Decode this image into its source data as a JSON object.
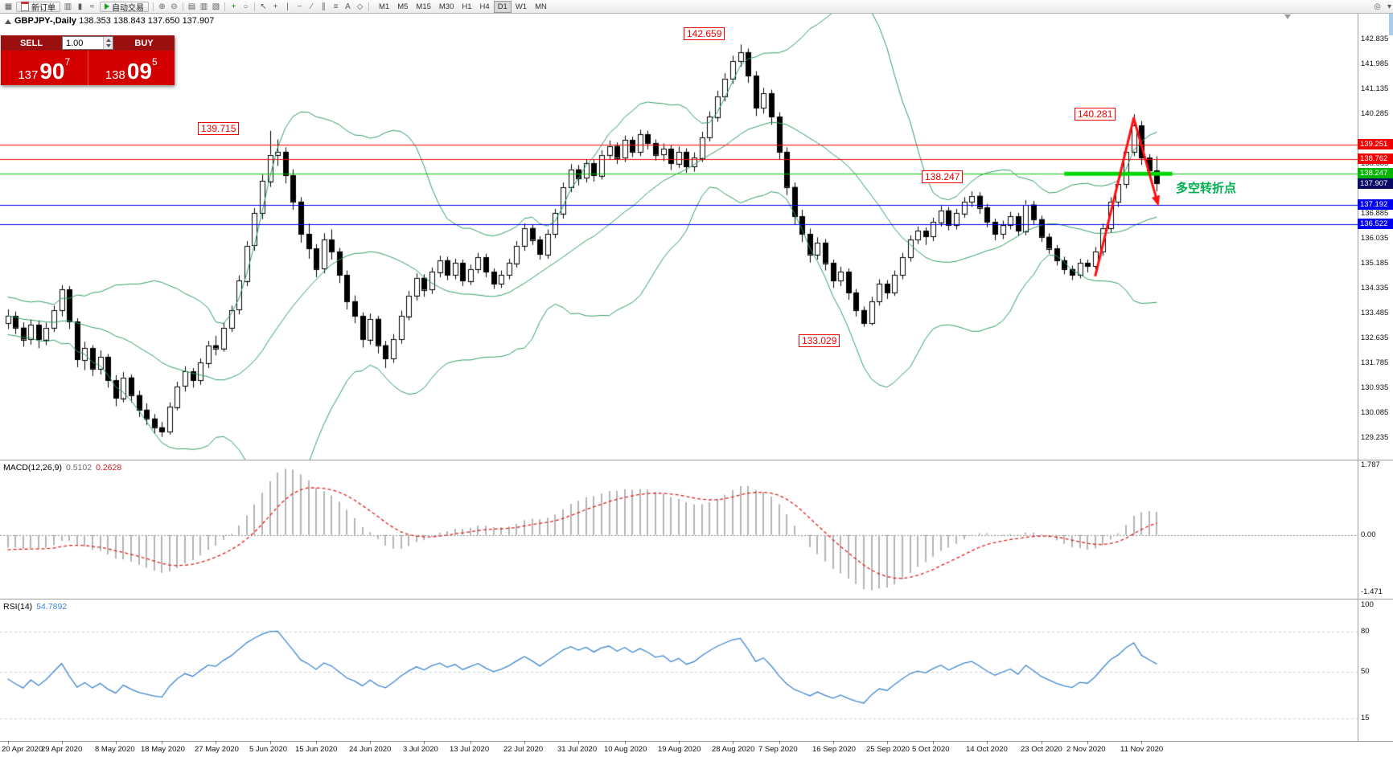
{
  "toolbar": {
    "new_order_label": "新订单",
    "auto_trading_label": "自动交易",
    "icons_left": [
      {
        "name": "charts-window-icon",
        "glyph": "▦"
      }
    ],
    "icons_mid": [
      {
        "name": "chart-bars-icon",
        "glyph": "▥"
      },
      {
        "name": "chart-candlesticks-icon",
        "glyph": "▮"
      },
      {
        "name": "chart-line-icon",
        "glyph": "≈"
      }
    ],
    "icons_tools": [
      {
        "sep": true
      },
      {
        "name": "zoom-in-icon",
        "glyph": "⊕"
      },
      {
        "name": "zoom-out-icon",
        "glyph": "⊖"
      },
      {
        "sep": true
      },
      {
        "name": "tile-windows-icon",
        "glyph": "▤"
      },
      {
        "name": "tile-vertical-icon",
        "glyph": "▥"
      },
      {
        "name": "cascade-windows-icon",
        "glyph": "▧"
      },
      {
        "sep": true
      },
      {
        "name": "indicators-icon",
        "glyph": "+",
        "color": "#0b8f0b"
      },
      {
        "name": "period-clock-icon",
        "glyph": "○"
      },
      {
        "sep": true
      },
      {
        "name": "pointer-tool-icon",
        "glyph": "↖"
      },
      {
        "name": "crosshair-tool-icon",
        "glyph": "+"
      },
      {
        "name": "vertical-line-tool-icon",
        "glyph": "|"
      },
      {
        "name": "horizontal-line-tool-icon",
        "glyph": "−"
      },
      {
        "name": "trendline-tool-icon",
        "glyph": "∕"
      },
      {
        "name": "channel-tool-icon",
        "glyph": "∥"
      },
      {
        "name": "fibonacci-tool-icon",
        "glyph": "≡"
      },
      {
        "name": "text-tool-icon",
        "glyph": "A"
      },
      {
        "name": "shapes-tool-icon",
        "glyph": "◇"
      },
      {
        "sep": true
      }
    ],
    "icons_right": [
      {
        "name": "search-icon",
        "glyph": "◎"
      },
      {
        "name": "more-dropdown-icon",
        "glyph": "▾"
      }
    ],
    "timeframes": [
      "M1",
      "M5",
      "M15",
      "M30",
      "H1",
      "H4",
      "D1",
      "W1",
      "MN"
    ],
    "active_timeframe": "D1"
  },
  "chart_header": {
    "symbol": "GBPJPY-,Daily",
    "ohlc": "138.353 138.843 137.650 137.907"
  },
  "order_panel": {
    "sell_label": "SELL",
    "buy_label": "BUY",
    "volume": "1.00",
    "sell": {
      "small": "137",
      "big": "90",
      "sup": "7"
    },
    "buy": {
      "small": "138",
      "big": "09",
      "sup": "5"
    }
  },
  "annotations": {
    "jun_high": "139.715",
    "sep_high": "142.659",
    "nov_high": "140.281",
    "pivot": "138.247",
    "sep_low": "133.029",
    "note": "多空转折点"
  },
  "indicators": {
    "macd": {
      "label": "MACD(12,26,9)",
      "value_main": "0.5102",
      "value_signal": "0.2628",
      "scale": [
        {
          "label": "1.787",
          "value": 1.787
        },
        {
          "label": "0.00",
          "value": 0
        },
        {
          "label": "-1.471",
          "value": -1.471
        }
      ]
    },
    "rsi": {
      "label": "RSI(14)",
      "value": "54.7892",
      "scale": [
        {
          "label": "100",
          "value": 100
        },
        {
          "label": "80",
          "value": 80
        },
        {
          "label": "50",
          "value": 50
        },
        {
          "label": "15",
          "value": 15
        }
      ],
      "levels": [
        80,
        50,
        15
      ]
    }
  },
  "price_scale": {
    "ticks": [
      {
        "label": "142.835",
        "price": 142.835
      },
      {
        "label": "141.985",
        "price": 141.985
      },
      {
        "label": "141.135",
        "price": 141.135
      },
      {
        "label": "140.285",
        "price": 140.285
      },
      {
        "label": "138.585",
        "price": 138.585
      },
      {
        "label": "136.885",
        "price": 136.885
      },
      {
        "label": "136.035",
        "price": 136.035
      },
      {
        "label": "135.185",
        "price": 135.185
      },
      {
        "label": "134.335",
        "price": 134.335
      },
      {
        "label": "133.485",
        "price": 133.485
      },
      {
        "label": "132.635",
        "price": 132.635
      },
      {
        "label": "131.785",
        "price": 131.785
      },
      {
        "label": "130.935",
        "price": 130.935
      },
      {
        "label": "130.085",
        "price": 130.085
      },
      {
        "label": "129.235",
        "price": 129.235
      }
    ],
    "highlights": [
      {
        "label": "139.251",
        "price": 139.251,
        "color": "#f00000"
      },
      {
        "label": "138.762",
        "price": 138.762,
        "color": "#f00000"
      },
      {
        "label": "138.247",
        "price": 138.247,
        "color": "#00b400"
      },
      {
        "label": "137.907",
        "price": 137.907,
        "color": "#0a0a64"
      },
      {
        "label": "137.192",
        "price": 137.192,
        "color": "#0000f0"
      },
      {
        "label": "136.522",
        "price": 136.522,
        "color": "#0000f0"
      }
    ]
  },
  "date_axis": [
    {
      "label": "20 Apr 2020",
      "i": 0
    },
    {
      "label": "29 Apr 2020",
      "i": 7
    },
    {
      "label": "8 May 2020",
      "i": 14
    },
    {
      "label": "18 May 2020",
      "i": 20
    },
    {
      "label": "27 May 2020",
      "i": 27
    },
    {
      "label": "5 Jun 2020",
      "i": 34
    },
    {
      "label": "15 Jun 2020",
      "i": 40
    },
    {
      "label": "24 Jun 2020",
      "i": 47
    },
    {
      "label": "3 Jul 2020",
      "i": 54
    },
    {
      "label": "13 Jul 2020",
      "i": 60
    },
    {
      "label": "22 Jul 2020",
      "i": 67
    },
    {
      "label": "31 Jul 2020",
      "i": 74
    },
    {
      "label": "10 Aug 2020",
      "i": 80
    },
    {
      "label": "19 Aug 2020",
      "i": 87
    },
    {
      "label": "28 Aug 2020",
      "i": 94
    },
    {
      "label": "7 Sep 2020",
      "i": 100
    },
    {
      "label": "16 Sep 2020",
      "i": 107
    },
    {
      "label": "25 Sep 2020",
      "i": 114
    },
    {
      "label": "5 Oct 2020",
      "i": 120
    },
    {
      "label": "14 Oct 2020",
      "i": 127
    },
    {
      "label": "23 Oct 2020",
      "i": 134
    },
    {
      "label": "2 Nov 2020",
      "i": 140
    },
    {
      "label": "11 Nov 2020",
      "i": 147
    }
  ],
  "chart_data": {
    "type": "candlestick",
    "title": "GBPJPY-,Daily",
    "ohlc_last": {
      "open": 138.353,
      "high": 138.843,
      "low": 137.65,
      "close": 137.907
    },
    "bollinger": {
      "period": 20,
      "deviations": 2
    },
    "macd": {
      "fast": 12,
      "slow": 26,
      "signal": 9
    },
    "rsi": {
      "period": 14
    },
    "lines": [
      {
        "price": 139.251,
        "color": "#f00000"
      },
      {
        "price": 138.762,
        "color": "#f00000"
      },
      {
        "price": 138.247,
        "color": "#00c000"
      },
      {
        "price": 137.192,
        "color": "#0000f0"
      },
      {
        "price": 136.522,
        "color": "#0000f0"
      }
    ],
    "green_zone": {
      "price": 138.247,
      "from": 137,
      "to": 151
    },
    "zigzag": [
      {
        "i": 141,
        "p": 134.75
      },
      {
        "i": 146,
        "p": 140.15
      },
      {
        "i": 149,
        "p": 137.35
      }
    ],
    "pre_closes": [
      135.4,
      135.1,
      134.8,
      135.0,
      134.6,
      134.2,
      134.5,
      134.0,
      133.7,
      133.9,
      133.5,
      133.8,
      134.1,
      133.6,
      133.3,
      133.6,
      133.9,
      133.4,
      133.1,
      133.4,
      133.7,
      133.2,
      132.9,
      133.2,
      133.5,
      133.0,
      133.3,
      133.6,
      133.1,
      132.9
    ],
    "candles": [
      [
        133.15,
        133.62,
        132.95,
        133.4
      ],
      [
        133.4,
        133.55,
        132.78,
        133.0
      ],
      [
        133.0,
        133.18,
        132.35,
        132.6
      ],
      [
        132.6,
        133.28,
        132.42,
        133.1
      ],
      [
        133.1,
        133.25,
        132.3,
        132.6
      ],
      [
        132.6,
        133.17,
        132.4,
        133.0
      ],
      [
        133.0,
        133.75,
        132.85,
        133.6
      ],
      [
        133.6,
        134.45,
        133.38,
        134.3
      ],
      [
        134.3,
        134.42,
        132.95,
        133.2
      ],
      [
        133.2,
        133.32,
        131.65,
        131.9
      ],
      [
        131.9,
        132.52,
        131.55,
        132.3
      ],
      [
        132.3,
        132.4,
        131.35,
        131.6
      ],
      [
        131.6,
        132.22,
        131.4,
        132.0
      ],
      [
        132.0,
        132.1,
        130.95,
        131.2
      ],
      [
        131.2,
        131.38,
        130.32,
        130.6
      ],
      [
        130.6,
        131.48,
        130.45,
        131.3
      ],
      [
        131.3,
        131.4,
        130.45,
        130.7
      ],
      [
        130.7,
        130.85,
        129.95,
        130.2
      ],
      [
        130.2,
        130.42,
        129.68,
        129.9
      ],
      [
        129.9,
        130.05,
        129.4,
        129.6
      ],
      [
        129.6,
        129.78,
        129.27,
        129.45
      ],
      [
        129.45,
        130.45,
        129.35,
        130.3
      ],
      [
        130.3,
        131.15,
        130.18,
        131.0
      ],
      [
        131.0,
        131.68,
        130.82,
        131.5
      ],
      [
        131.5,
        131.62,
        130.95,
        131.2
      ],
      [
        131.2,
        131.95,
        131.05,
        131.8
      ],
      [
        131.8,
        132.55,
        131.62,
        132.4
      ],
      [
        132.4,
        132.72,
        132.05,
        132.3
      ],
      [
        132.3,
        133.18,
        132.18,
        133.0
      ],
      [
        133.0,
        133.75,
        132.85,
        133.6
      ],
      [
        133.6,
        134.78,
        133.45,
        134.6
      ],
      [
        134.6,
        135.95,
        134.42,
        135.8
      ],
      [
        135.8,
        137.08,
        135.62,
        136.9
      ],
      [
        136.9,
        138.22,
        136.7,
        138.0
      ],
      [
        138.0,
        139.715,
        137.8,
        138.9
      ],
      [
        138.9,
        139.42,
        138.52,
        139.0
      ],
      [
        139.0,
        139.15,
        137.92,
        138.2
      ],
      [
        138.2,
        138.4,
        137.02,
        137.3
      ],
      [
        137.3,
        137.45,
        135.9,
        136.2
      ],
      [
        136.2,
        136.55,
        135.35,
        135.7
      ],
      [
        135.7,
        135.85,
        134.72,
        135.0
      ],
      [
        135.0,
        136.22,
        134.85,
        136.0
      ],
      [
        136.0,
        136.35,
        135.32,
        135.6
      ],
      [
        135.6,
        135.72,
        134.52,
        134.8
      ],
      [
        134.8,
        134.95,
        133.62,
        133.9
      ],
      [
        133.9,
        134.1,
        133.15,
        133.4
      ],
      [
        133.4,
        133.52,
        132.32,
        132.6
      ],
      [
        132.6,
        133.48,
        132.42,
        133.3
      ],
      [
        133.3,
        133.4,
        132.12,
        132.4
      ],
      [
        132.4,
        132.55,
        131.62,
        131.95
      ],
      [
        131.95,
        132.78,
        131.8,
        132.6
      ],
      [
        132.6,
        133.58,
        132.45,
        133.4
      ],
      [
        133.4,
        134.25,
        133.25,
        134.1
      ],
      [
        134.1,
        134.85,
        133.92,
        134.7
      ],
      [
        134.7,
        134.82,
        134.05,
        134.3
      ],
      [
        134.3,
        135.05,
        134.15,
        134.9
      ],
      [
        134.9,
        135.45,
        134.72,
        135.3
      ],
      [
        135.3,
        135.42,
        134.62,
        134.8
      ],
      [
        134.8,
        135.35,
        134.65,
        135.2
      ],
      [
        135.2,
        135.32,
        134.42,
        134.6
      ],
      [
        134.6,
        135.15,
        134.45,
        135.0
      ],
      [
        135.0,
        135.55,
        134.85,
        135.4
      ],
      [
        135.4,
        135.52,
        134.72,
        134.9
      ],
      [
        134.9,
        135.02,
        134.32,
        134.5
      ],
      [
        134.5,
        134.95,
        134.35,
        134.8
      ],
      [
        134.8,
        135.35,
        134.65,
        135.2
      ],
      [
        135.2,
        135.95,
        135.05,
        135.8
      ],
      [
        135.8,
        136.55,
        135.62,
        136.4
      ],
      [
        136.4,
        136.52,
        135.82,
        136.0
      ],
      [
        136.0,
        136.12,
        135.32,
        135.5
      ],
      [
        135.5,
        136.35,
        135.35,
        136.2
      ],
      [
        136.2,
        137.05,
        136.05,
        136.9
      ],
      [
        136.9,
        137.95,
        136.72,
        137.8
      ],
      [
        137.8,
        138.58,
        137.62,
        138.4
      ],
      [
        138.4,
        138.55,
        137.85,
        138.1
      ],
      [
        138.1,
        138.75,
        137.95,
        138.6
      ],
      [
        138.6,
        138.72,
        137.98,
        138.2
      ],
      [
        138.2,
        139.05,
        138.05,
        138.9
      ],
      [
        138.9,
        139.38,
        138.72,
        139.2
      ],
      [
        139.2,
        139.32,
        138.58,
        138.8
      ],
      [
        138.8,
        139.55,
        138.65,
        139.4
      ],
      [
        139.4,
        139.52,
        138.82,
        139.0
      ],
      [
        139.0,
        139.75,
        138.85,
        139.6
      ],
      [
        139.6,
        139.72,
        139.08,
        139.3
      ],
      [
        139.3,
        139.42,
        138.7,
        138.9
      ],
      [
        138.9,
        139.28,
        138.68,
        139.1
      ],
      [
        139.1,
        139.22,
        138.38,
        138.6
      ],
      [
        138.6,
        139.18,
        138.45,
        139.0
      ],
      [
        139.0,
        139.12,
        138.28,
        138.5
      ],
      [
        138.5,
        138.98,
        138.32,
        138.8
      ],
      [
        138.8,
        139.68,
        138.65,
        139.5
      ],
      [
        139.5,
        140.38,
        139.35,
        140.2
      ],
      [
        140.2,
        141.08,
        140.02,
        140.9
      ],
      [
        140.9,
        141.68,
        140.72,
        141.5
      ],
      [
        141.5,
        142.28,
        141.32,
        142.1
      ],
      [
        142.1,
        142.659,
        141.9,
        142.4
      ],
      [
        142.4,
        142.52,
        141.35,
        141.6
      ],
      [
        141.6,
        141.75,
        140.22,
        140.5
      ],
      [
        140.5,
        141.18,
        140.3,
        141.0
      ],
      [
        141.0,
        141.12,
        139.92,
        140.2
      ],
      [
        140.2,
        140.35,
        138.72,
        139.0
      ],
      [
        139.0,
        139.15,
        137.52,
        137.8
      ],
      [
        137.8,
        137.95,
        136.52,
        136.8
      ],
      [
        136.8,
        137.02,
        135.92,
        136.2
      ],
      [
        136.2,
        136.38,
        135.22,
        135.5
      ],
      [
        135.5,
        136.08,
        135.32,
        135.9
      ],
      [
        135.9,
        136.02,
        134.95,
        135.2
      ],
      [
        135.2,
        135.32,
        134.35,
        134.6
      ],
      [
        134.6,
        135.08,
        134.42,
        134.9
      ],
      [
        134.9,
        135.02,
        133.95,
        134.2
      ],
      [
        134.2,
        134.32,
        133.38,
        133.6
      ],
      [
        133.6,
        133.72,
        133.029,
        133.15
      ],
      [
        133.15,
        134.05,
        133.08,
        133.9
      ],
      [
        133.9,
        134.65,
        133.75,
        134.5
      ],
      [
        134.5,
        134.62,
        133.98,
        134.2
      ],
      [
        134.2,
        134.95,
        134.08,
        134.8
      ],
      [
        134.8,
        135.55,
        134.65,
        135.4
      ],
      [
        135.4,
        136.15,
        135.25,
        136.0
      ],
      [
        136.0,
        136.45,
        135.85,
        136.3
      ],
      [
        136.3,
        136.42,
        135.82,
        136.1
      ],
      [
        136.1,
        136.75,
        135.95,
        136.6
      ],
      [
        136.6,
        137.15,
        136.45,
        137.0
      ],
      [
        137.0,
        137.12,
        136.32,
        136.5
      ],
      [
        136.5,
        137.05,
        136.35,
        136.9
      ],
      [
        136.9,
        137.45,
        136.75,
        137.3
      ],
      [
        137.3,
        137.65,
        137.12,
        137.5
      ],
      [
        137.5,
        137.62,
        136.88,
        137.1
      ],
      [
        137.1,
        137.22,
        136.42,
        136.6
      ],
      [
        136.6,
        136.72,
        135.98,
        136.2
      ],
      [
        136.2,
        136.65,
        136.02,
        136.5
      ],
      [
        136.5,
        136.95,
        136.35,
        136.8
      ],
      [
        136.8,
        136.92,
        136.12,
        136.3
      ],
      [
        136.3,
        137.35,
        136.15,
        137.2
      ],
      [
        137.2,
        137.32,
        136.5,
        136.7
      ],
      [
        136.7,
        136.82,
        135.92,
        136.1
      ],
      [
        136.1,
        136.22,
        135.52,
        135.7
      ],
      [
        135.7,
        135.82,
        135.12,
        135.3
      ],
      [
        135.3,
        135.42,
        134.82,
        135.0
      ],
      [
        135.0,
        135.12,
        134.62,
        134.8
      ],
      [
        134.8,
        135.35,
        134.68,
        135.2
      ],
      [
        135.2,
        135.32,
        134.88,
        135.1
      ],
      [
        135.1,
        135.75,
        134.98,
        135.6
      ],
      [
        135.6,
        136.55,
        135.45,
        136.4
      ],
      [
        136.4,
        137.45,
        136.25,
        137.3
      ],
      [
        137.3,
        138.05,
        137.12,
        137.9
      ],
      [
        137.9,
        139.15,
        137.75,
        139.0
      ],
      [
        139.0,
        140.281,
        138.85,
        139.9
      ],
      [
        139.9,
        140.05,
        138.55,
        138.8
      ],
      [
        138.8,
        138.92,
        138.1,
        138.35
      ],
      [
        138.353,
        138.843,
        137.65,
        137.907
      ]
    ]
  }
}
